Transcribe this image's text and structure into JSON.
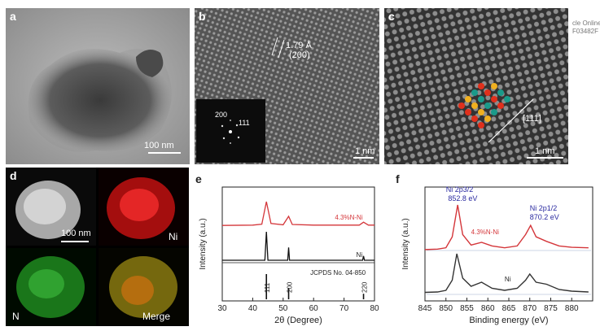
{
  "labels": {
    "a": "a",
    "b": "b",
    "c": "c",
    "d": "d",
    "e": "e",
    "f": "f"
  },
  "edge_text": [
    "cle Online",
    "F03482F"
  ],
  "panel_a": {
    "scale": "100 nm"
  },
  "panel_b": {
    "spacing": "1.79 Å",
    "plane": "(200)",
    "fft_spots": [
      "200",
      "111"
    ],
    "scale": "1 nm"
  },
  "panel_c": {
    "direction": "[111]",
    "scale": "1 nm"
  },
  "panel_d": {
    "scale": "100 nm",
    "maps": [
      "Ni",
      "N",
      "Merge"
    ],
    "colors": {
      "haadf": "#c8c8c8",
      "ni": "#d81818",
      "n": "#20a020",
      "merge": "#b89a20"
    }
  },
  "chart_data": [
    {
      "type": "line",
      "panel": "e",
      "xlabel": "2θ (Degree)",
      "ylabel": "Intensity (a.u.)",
      "xlim": [
        30,
        80
      ],
      "xticks": [
        30,
        40,
        50,
        60,
        70,
        80
      ],
      "series": [
        {
          "name": "4.3%N-Ni",
          "color": "#d4363a",
          "x": [
            30,
            40,
            43,
            44.5,
            46,
            50,
            51.8,
            53,
            60,
            70,
            75,
            76.4,
            78,
            80
          ],
          "y": [
            0.02,
            0.03,
            0.06,
            0.75,
            0.08,
            0.04,
            0.3,
            0.05,
            0.03,
            0.03,
            0.03,
            0.12,
            0.03,
            0.03
          ]
        },
        {
          "name": "Ni",
          "color": "#111111",
          "x": [
            30,
            44,
            44.5,
            45,
            51.5,
            51.8,
            52.1,
            76.1,
            76.4,
            76.7,
            80
          ],
          "y": [
            0,
            0,
            1,
            0,
            0,
            0.45,
            0,
            0,
            0.15,
            0,
            0
          ]
        }
      ],
      "reference": {
        "name": "JCPDS No. 04-850",
        "peaks": [
          {
            "x": 44.5,
            "label": "111",
            "h": 1
          },
          {
            "x": 51.8,
            "label": "200",
            "h": 0.45
          },
          {
            "x": 76.4,
            "label": "220",
            "h": 0.22
          }
        ]
      }
    },
    {
      "type": "line",
      "panel": "f",
      "xlabel": "Binding energy (eV)",
      "ylabel": "Intensity (a.u.)",
      "xlim": [
        845,
        885
      ],
      "xticks": [
        845,
        850,
        855,
        860,
        865,
        870,
        875,
        880
      ],
      "series": [
        {
          "name": "4.3%N-Ni",
          "color": "#d4363a",
          "x": [
            845,
            848,
            850,
            851.5,
            852.8,
            854,
            856,
            858.5,
            861,
            864,
            867,
            869,
            870.2,
            871.5,
            874,
            877,
            880,
            884
          ],
          "y": [
            0.02,
            0.03,
            0.06,
            0.3,
            1,
            0.35,
            0.12,
            0.18,
            0.1,
            0.06,
            0.1,
            0.35,
            0.55,
            0.3,
            0.2,
            0.1,
            0.07,
            0.06
          ]
        },
        {
          "name": "Ni",
          "color": "#333333",
          "x": [
            845,
            848,
            850,
            851.5,
            852.6,
            854,
            856,
            858.5,
            861,
            864,
            867,
            869,
            870,
            871.5,
            874,
            877,
            880,
            884
          ],
          "y": [
            0.05,
            0.06,
            0.1,
            0.35,
            1,
            0.4,
            0.2,
            0.3,
            0.15,
            0.1,
            0.15,
            0.35,
            0.5,
            0.3,
            0.25,
            0.12,
            0.08,
            0.06
          ]
        }
      ],
      "annotations": [
        "Ni 2p3/2",
        "852.8 eV",
        "Ni 2p1/2",
        "870.2 eV",
        "Ni"
      ]
    }
  ]
}
